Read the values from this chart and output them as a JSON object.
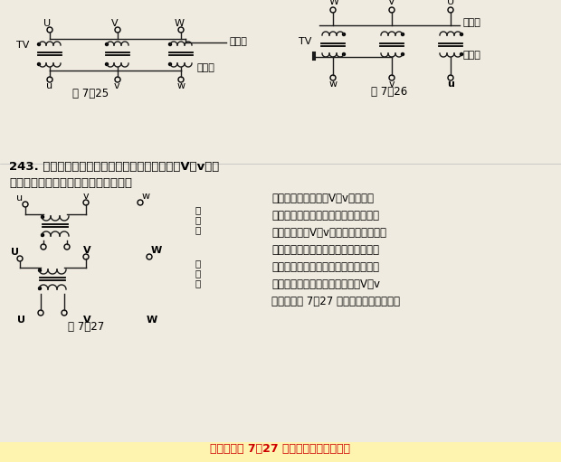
{
  "bg_color": "#f0ebe0",
  "line_color": "#1a1a1a",
  "fig25_label": "图 7－25",
  "fig26_label": "图 7－26",
  "fig27_label": "图 7－27",
  "q_line1": "243. 试述高压计量装置中电压互感器开口角形（V，v型）",
  "q_line2": "正确接线的方法，并绘出接线图说明。",
  "ans_lines": [
    "答：电压互感器的（V，v型）接线",
    "方法是在采用三角形接线中，取去一组",
    "绕组后就是（V，v型）开口角接线亦即",
    "第一相绕组正极与负极连接而成开口角",
    "形接线，不能同极性相连接。这种接线",
    "是用两具单相电压互感器接成（V，v",
    "型），如图 7－27 所示的极性接法是正极"
  ],
  "bottom_text": "型），如图 7－27 所示的极性接法是正极",
  "bottom_bg": "#fff3b0",
  "bottom_color": "#cc0000"
}
